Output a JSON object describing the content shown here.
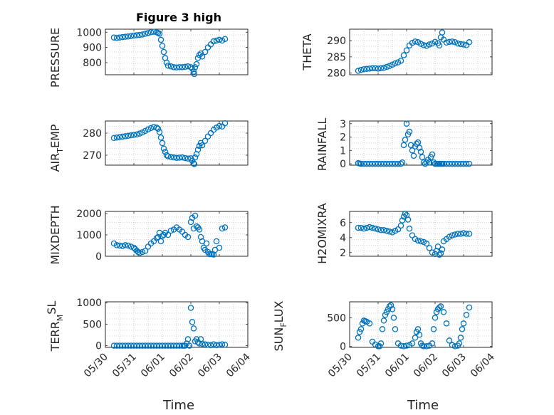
{
  "figure": {
    "marker_color": "#0072BD",
    "axis_color": "#262626",
    "grid": true,
    "x_ticks": [
      "05/30",
      "05/31",
      "06/01",
      "06/02",
      "06/03",
      "06/04"
    ]
  },
  "chart_data": [
    {
      "type": "scatter",
      "title": "Figure 3 high",
      "ylabel": "PRESSURE",
      "ylim": [
        720,
        1020
      ],
      "yticks": [
        800,
        900,
        1000
      ],
      "x": [
        0.3,
        0.4,
        0.5,
        0.6,
        0.7,
        0.8,
        0.9,
        1.0,
        1.1,
        1.2,
        1.3,
        1.4,
        1.5,
        1.6,
        1.7,
        1.8,
        1.85,
        1.9,
        1.95,
        2.0,
        2.05,
        2.1,
        2.15,
        2.2,
        2.3,
        2.4,
        2.5,
        2.6,
        2.7,
        2.8,
        2.9,
        3.0,
        3.05,
        3.1,
        3.12,
        3.15,
        3.2,
        3.25,
        3.3,
        3.35,
        3.4,
        3.5,
        3.6,
        3.7,
        3.8,
        3.9,
        4.0,
        4.1,
        4.2
      ],
      "y": [
        965,
        962,
        965,
        968,
        970,
        972,
        975,
        978,
        980,
        982,
        985,
        990,
        995,
        1000,
        1003,
        1000,
        995,
        990,
        950,
        910,
        870,
        830,
        800,
        780,
        775,
        770,
        768,
        770,
        770,
        772,
        775,
        770,
        760,
        740,
        725,
        770,
        790,
        830,
        850,
        860,
        840,
        870,
        900,
        920,
        940,
        945,
        950,
        945,
        955
      ]
    },
    {
      "type": "scatter",
      "ylabel": "THETA",
      "ylim": [
        279.5,
        293.5
      ],
      "yticks": [
        280,
        285,
        290
      ],
      "x": [
        0.3,
        0.4,
        0.5,
        0.6,
        0.7,
        0.8,
        0.9,
        1.0,
        1.1,
        1.2,
        1.3,
        1.4,
        1.5,
        1.6,
        1.7,
        1.8,
        1.9,
        2.0,
        2.1,
        2.2,
        2.3,
        2.4,
        2.5,
        2.6,
        2.7,
        2.8,
        2.9,
        3.0,
        3.1,
        3.15,
        3.2,
        3.25,
        3.3,
        3.4,
        3.5,
        3.6,
        3.7,
        3.8,
        3.9,
        4.0,
        4.1,
        4.2
      ],
      "y": [
        280.7,
        281,
        281.2,
        281.3,
        281.4,
        281.5,
        281.5,
        281.4,
        281.5,
        281.6,
        281.9,
        282.2,
        282.6,
        283,
        283.3,
        283.8,
        285.5,
        287,
        288.5,
        289.3,
        289.7,
        289.5,
        289,
        288.6,
        288.4,
        288.8,
        289.1,
        289.6,
        289.2,
        288.5,
        291,
        292.5,
        290.3,
        289.4,
        289.6,
        289.7,
        289.5,
        289.1,
        288.9,
        288.8,
        288.6,
        289.5
      ]
    },
    {
      "type": "scatter",
      "ylabel": "AIR_TEMP",
      "ylim": [
        265.5,
        285.5
      ],
      "yticks": [
        270,
        280
      ],
      "x": [
        0.3,
        0.4,
        0.5,
        0.6,
        0.7,
        0.8,
        0.9,
        1.0,
        1.1,
        1.2,
        1.3,
        1.4,
        1.5,
        1.6,
        1.7,
        1.8,
        1.85,
        1.9,
        1.95,
        2.0,
        2.05,
        2.1,
        2.15,
        2.2,
        2.3,
        2.4,
        2.5,
        2.6,
        2.7,
        2.8,
        2.9,
        3.0,
        3.05,
        3.1,
        3.12,
        3.15,
        3.2,
        3.25,
        3.3,
        3.35,
        3.4,
        3.5,
        3.6,
        3.7,
        3.8,
        3.9,
        4.0,
        4.1,
        4.2
      ],
      "y": [
        277.8,
        278,
        278.2,
        278.4,
        278.6,
        278.8,
        279,
        279.2,
        279.4,
        279.8,
        280.3,
        281,
        281.7,
        282.3,
        282.8,
        282.5,
        282,
        280.5,
        278,
        275.5,
        273,
        271.5,
        270,
        269.5,
        269.2,
        269,
        268.8,
        268.9,
        269,
        268.7,
        268.5,
        268.6,
        267.5,
        266.3,
        266,
        269,
        270.5,
        272.5,
        274.2,
        275.5,
        274.5,
        276.5,
        278.5,
        280,
        281.5,
        282.5,
        283.2,
        283,
        284.5
      ]
    },
    {
      "type": "scatter",
      "ylabel": "RAINFALL",
      "ylim": [
        -0.1,
        3.2
      ],
      "yticks": [
        0,
        1,
        2,
        3
      ],
      "x": [
        0.3,
        0.35,
        0.4,
        0.5,
        0.6,
        0.7,
        0.8,
        0.9,
        1.0,
        1.1,
        1.2,
        1.3,
        1.4,
        1.5,
        1.6,
        1.7,
        1.8,
        1.85,
        1.9,
        1.95,
        2.0,
        2.05,
        2.1,
        2.15,
        2.2,
        2.25,
        2.3,
        2.35,
        2.4,
        2.45,
        2.5,
        2.55,
        2.6,
        2.65,
        2.7,
        2.75,
        2.8,
        2.85,
        2.9,
        2.95,
        3.0,
        3.05,
        3.1,
        3.15,
        3.2,
        3.25,
        3.3,
        3.4,
        3.5,
        3.6,
        3.7,
        3.8,
        3.9,
        4.0,
        4.1,
        4.2
      ],
      "y": [
        0.05,
        0.02,
        0,
        0,
        0,
        0,
        0,
        0,
        0,
        0,
        0,
        0,
        0,
        0,
        0,
        0,
        0,
        0.1,
        1.4,
        1.8,
        3.0,
        2.2,
        2.4,
        1.4,
        1.0,
        0.6,
        1.3,
        1.5,
        1.6,
        1.2,
        0.9,
        0.5,
        0.1,
        0,
        0.1,
        0.3,
        0.1,
        0.5,
        0.7,
        0.1,
        0,
        0,
        0,
        0,
        0,
        0,
        0,
        0,
        0,
        0,
        0,
        0,
        0,
        0,
        0,
        0
      ]
    },
    {
      "type": "scatter",
      "ylabel": "MIXDEPTH",
      "ylim": [
        0,
        2100
      ],
      "yticks": [
        0,
        1000,
        2000
      ],
      "x": [
        0.3,
        0.4,
        0.5,
        0.6,
        0.7,
        0.8,
        0.9,
        1.0,
        1.05,
        1.1,
        1.15,
        1.2,
        1.3,
        1.4,
        1.5,
        1.6,
        1.7,
        1.8,
        1.85,
        1.9,
        1.95,
        2.0,
        2.05,
        2.1,
        2.2,
        2.3,
        2.4,
        2.5,
        2.6,
        2.7,
        2.8,
        2.9,
        3.0,
        3.05,
        3.1,
        3.15,
        3.2,
        3.25,
        3.3,
        3.35,
        3.4,
        3.45,
        3.5,
        3.55,
        3.6,
        3.65,
        3.7,
        3.75,
        3.8,
        3.85,
        3.9,
        4.0,
        4.1,
        4.2
      ],
      "y": [
        600,
        520,
        500,
        480,
        520,
        500,
        450,
        400,
        330,
        260,
        200,
        150,
        200,
        250,
        450,
        600,
        700,
        850,
        900,
        1100,
        700,
        950,
        1000,
        1100,
        1000,
        1200,
        1250,
        1350,
        1250,
        1150,
        1000,
        900,
        1600,
        1800,
        1300,
        1900,
        1400,
        1350,
        1250,
        900,
        700,
        400,
        300,
        600,
        200,
        100,
        100,
        100,
        80,
        300,
        700,
        400,
        1300,
        1350
      ]
    },
    {
      "type": "scatter",
      "ylabel": "H2OMIXRA",
      "ylim": [
        1.5,
        7.5
      ],
      "yticks": [
        2,
        4,
        6
      ],
      "x": [
        0.3,
        0.4,
        0.5,
        0.6,
        0.7,
        0.8,
        0.9,
        1.0,
        1.1,
        1.2,
        1.3,
        1.4,
        1.5,
        1.6,
        1.7,
        1.8,
        1.85,
        1.9,
        1.95,
        2.0,
        2.05,
        2.1,
        2.2,
        2.3,
        2.4,
        2.5,
        2.6,
        2.7,
        2.8,
        2.9,
        3.0,
        3.05,
        3.1,
        3.15,
        3.2,
        3.25,
        3.3,
        3.4,
        3.5,
        3.6,
        3.7,
        3.8,
        3.9,
        4.0,
        4.1,
        4.2
      ],
      "y": [
        5.3,
        5.3,
        5.2,
        5.3,
        5.4,
        5.3,
        5.2,
        5.1,
        5.0,
        5.0,
        4.9,
        4.8,
        4.7,
        4.9,
        5.1,
        5.6,
        6.3,
        6.8,
        7.2,
        7.0,
        6.4,
        5.2,
        4.3,
        3.8,
        3.6,
        3.5,
        3.4,
        3.2,
        2.6,
        2.0,
        1.8,
        2.2,
        2.8,
        1.7,
        1.9,
        2.4,
        3.5,
        3.8,
        4.1,
        4.3,
        4.4,
        4.5,
        4.5,
        4.6,
        4.5,
        4.5
      ]
    },
    {
      "type": "scatter",
      "ylabel": "TERR_MSL",
      "ylim": [
        -40,
        1020
      ],
      "yticks": [
        0,
        500,
        1000
      ],
      "x": [
        0.3,
        0.4,
        0.5,
        0.6,
        0.7,
        0.8,
        0.9,
        1.0,
        1.1,
        1.2,
        1.3,
        1.4,
        1.5,
        1.6,
        1.7,
        1.8,
        1.9,
        2.0,
        2.1,
        2.2,
        2.3,
        2.4,
        2.5,
        2.6,
        2.7,
        2.75,
        2.8,
        2.85,
        2.9,
        2.95,
        3.0,
        3.05,
        3.1,
        3.15,
        3.2,
        3.25,
        3.3,
        3.35,
        3.4,
        3.5,
        3.6,
        3.7,
        3.8,
        3.9,
        4.0,
        4.1,
        4.2
      ],
      "y": [
        0,
        0,
        0,
        0,
        0,
        0,
        0,
        0,
        0,
        0,
        0,
        0,
        0,
        0,
        0,
        0,
        0,
        0,
        0,
        0,
        0,
        0,
        0,
        0,
        0,
        0,
        0,
        50,
        150,
        0,
        880,
        550,
        400,
        100,
        150,
        80,
        50,
        150,
        40,
        30,
        20,
        10,
        30,
        10,
        20,
        30,
        20
      ]
    },
    {
      "type": "scatter",
      "ylabel": "SUN_FLUX",
      "ylim": [
        -20,
        780
      ],
      "yticks": [
        0,
        500
      ],
      "x": [
        0.3,
        0.35,
        0.4,
        0.45,
        0.5,
        0.55,
        0.6,
        0.7,
        0.8,
        0.9,
        1.0,
        1.05,
        1.1,
        1.15,
        1.2,
        1.25,
        1.3,
        1.35,
        1.4,
        1.45,
        1.5,
        1.55,
        1.6,
        1.7,
        1.8,
        1.9,
        2.0,
        2.1,
        2.2,
        2.3,
        2.35,
        2.4,
        2.45,
        2.5,
        2.55,
        2.6,
        2.7,
        2.8,
        2.9,
        2.95,
        3.0,
        3.05,
        3.1,
        3.15,
        3.2,
        3.3,
        3.4,
        3.5,
        3.6,
        3.7,
        3.8,
        3.85,
        3.9,
        3.95,
        4.0,
        4.1,
        4.2
      ],
      "y": [
        150,
        250,
        300,
        400,
        450,
        440,
        430,
        400,
        80,
        30,
        0,
        0,
        50,
        300,
        450,
        550,
        600,
        650,
        700,
        720,
        650,
        500,
        300,
        50,
        10,
        0,
        10,
        20,
        50,
        150,
        250,
        300,
        200,
        50,
        10,
        0,
        0,
        10,
        50,
        300,
        500,
        600,
        650,
        680,
        700,
        600,
        400,
        100,
        20,
        0,
        10,
        50,
        150,
        300,
        400,
        550,
        680
      ]
    }
  ],
  "labels": {
    "pressure": "PRESSURE",
    "theta": "THETA",
    "airtemp_main": "AIR",
    "airtemp_sub": "T",
    "airtemp_tail": "EMP",
    "rainfall": "RAINFALL",
    "mixdepth": "MIXDEPTH",
    "h2omixra": "H2OMIXRA",
    "terr_main": "TERR",
    "terr_sub": "M",
    "terr_tail": "SL",
    "sun_main": "SUN",
    "sun_sub": "F",
    "sun_tail": "LUX",
    "xlabel_left": "Time",
    "xlabel_right": "Time"
  }
}
